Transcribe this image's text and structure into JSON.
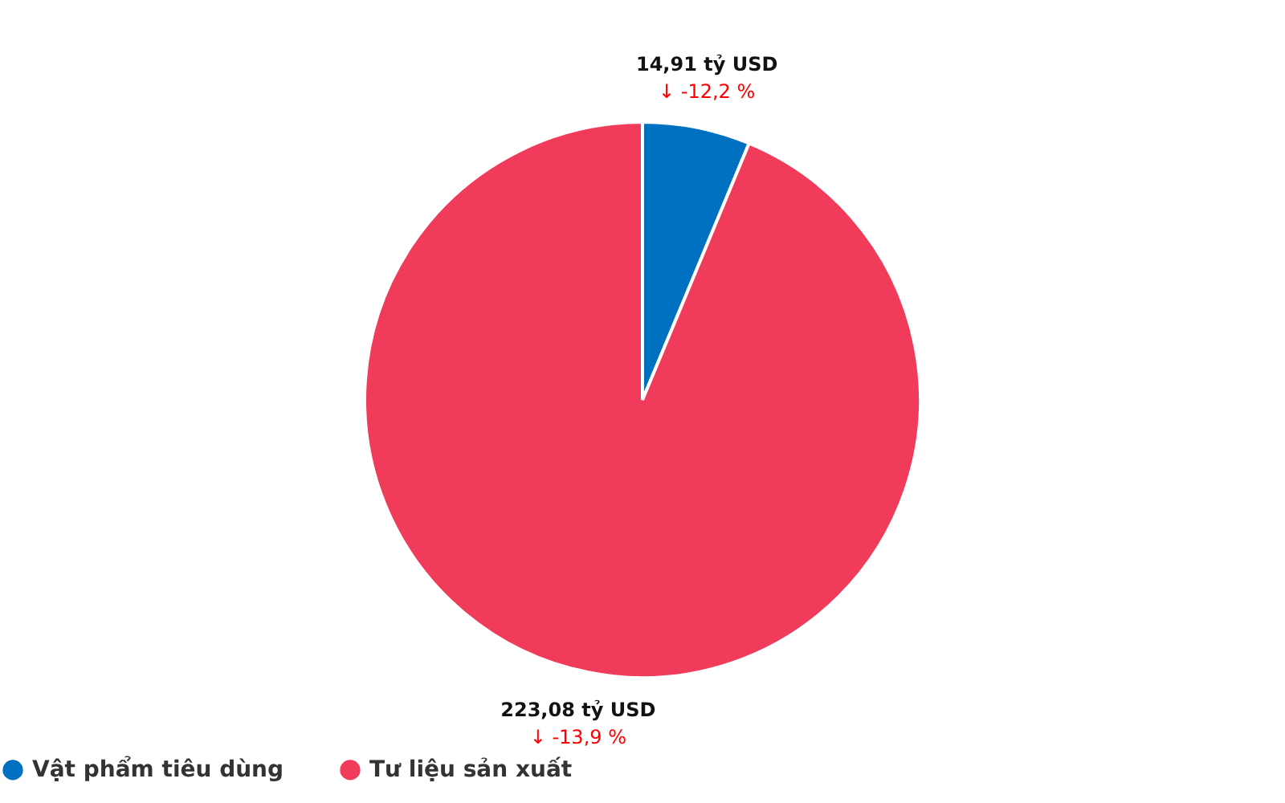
{
  "chart_data": {
    "type": "pie",
    "categories": [
      "Vật phẩm tiêu dùng",
      "Tư liệu sản xuất"
    ],
    "values": [
      14.91,
      223.08
    ],
    "colors": [
      "#0070c0",
      "#f03c5a"
    ],
    "value_labels": [
      "14,91 tỷ USD",
      "223,08 tỷ USD"
    ],
    "annotations": [
      "↓ -12,2 %",
      "↓ -13,9 %"
    ],
    "legend": "bottom"
  }
}
